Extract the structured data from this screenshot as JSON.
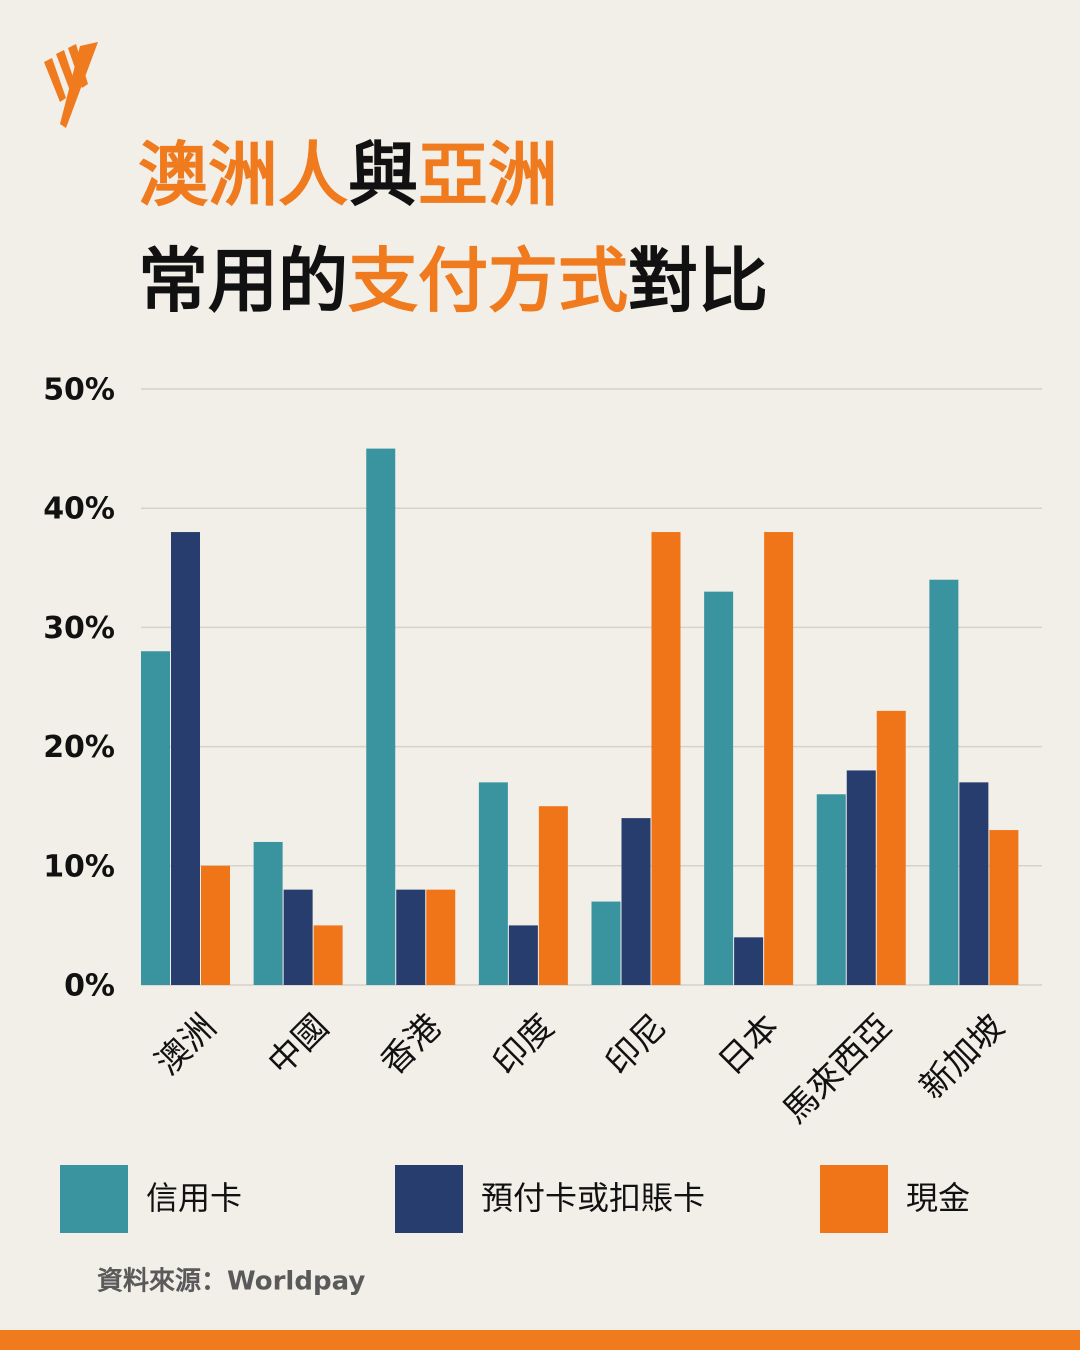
{
  "chart_data": {
    "type": "bar",
    "title_lines": [
      [
        {
          "text": "澳洲人",
          "color": "#f07a1e"
        },
        {
          "text": "與",
          "color": "#111111"
        },
        {
          "text": "亞洲",
          "color": "#f07a1e"
        }
      ],
      [
        {
          "text": "常用的",
          "color": "#111111"
        },
        {
          "text": "支付方式",
          "color": "#f07a1e"
        },
        {
          "text": "對比",
          "color": "#111111"
        }
      ]
    ],
    "categories": [
      "澳洲",
      "中國",
      "香港",
      "印度",
      "印尼",
      "日本",
      "馬來西亞",
      "新加坡"
    ],
    "series": [
      {
        "name": "信用卡",
        "color": "#3a94a0",
        "values": [
          28,
          12,
          45,
          17,
          7,
          33,
          16,
          34
        ]
      },
      {
        "name": "預付卡或扣賬卡",
        "color": "#263d6e",
        "values": [
          38,
          8,
          8,
          5,
          14,
          4,
          18,
          17
        ]
      },
      {
        "name": "現金",
        "color": "#f07519",
        "values": [
          10,
          5,
          8,
          15,
          38,
          38,
          23,
          13
        ]
      }
    ],
    "ylim": [
      0,
      50
    ],
    "yticks": [
      {
        "value": 0,
        "label": "0%"
      },
      {
        "value": 10,
        "label": "10%"
      },
      {
        "value": 20,
        "label": "20%"
      },
      {
        "value": 30,
        "label": "30%"
      },
      {
        "value": 40,
        "label": "40%"
      },
      {
        "value": 50,
        "label": "50%"
      }
    ],
    "grid": true,
    "legend": "bottom",
    "source": "資料來源：Worldpay"
  }
}
